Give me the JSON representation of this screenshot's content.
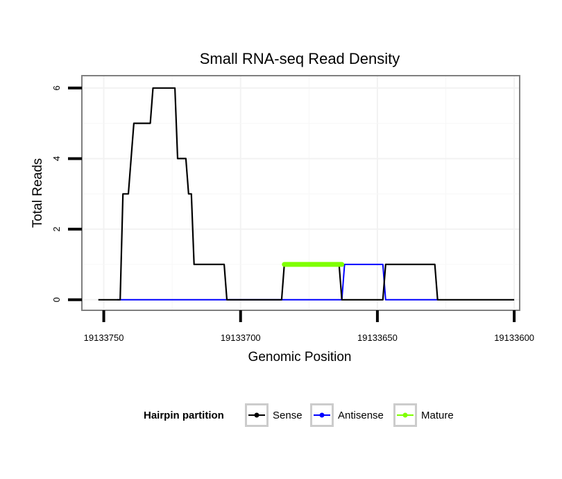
{
  "chart_data": {
    "type": "line",
    "title": "Small RNA-seq Read Density",
    "xlabel": "Genomic Position",
    "ylabel": "Total Reads",
    "xlim": [
      19133758,
      19133598
    ],
    "ylim": [
      -0.3,
      6.35
    ],
    "x_reversed": true,
    "x_ticks": [
      19133750,
      19133700,
      19133650,
      19133600
    ],
    "x_tick_labels": [
      "19133750",
      "19133700",
      "19133650",
      "19133600"
    ],
    "y_ticks": [
      0,
      2,
      4,
      6
    ],
    "y_tick_labels": [
      "0",
      "2",
      "4",
      "6"
    ],
    "grid": true,
    "legend": {
      "title": "Hairpin partition",
      "position": "bottom",
      "entries": [
        "Sense",
        "Antisense",
        "Mature"
      ]
    },
    "series": [
      {
        "name": "Sense",
        "color": "#000000",
        "points": [
          [
            19133752,
            0
          ],
          [
            19133744,
            0
          ],
          [
            19133743,
            3
          ],
          [
            19133741,
            3
          ],
          [
            19133739,
            5
          ],
          [
            19133733,
            5
          ],
          [
            19133732,
            6
          ],
          [
            19133724,
            6
          ],
          [
            19133723,
            4
          ],
          [
            19133720,
            4
          ],
          [
            19133719,
            3
          ],
          [
            19133718,
            3
          ],
          [
            19133717,
            1
          ],
          [
            19133706,
            1
          ],
          [
            19133705,
            0
          ],
          [
            19133685,
            0
          ],
          [
            19133684,
            1
          ],
          [
            19133664,
            1
          ],
          [
            19133663,
            0
          ],
          [
            19133648,
            0
          ],
          [
            19133647,
            1
          ],
          [
            19133629,
            1
          ],
          [
            19133628,
            0
          ],
          [
            19133600,
            0
          ]
        ]
      },
      {
        "name": "Antisense",
        "color": "#0000ff",
        "points": [
          [
            19133745,
            0
          ],
          [
            19133663,
            0
          ],
          [
            19133662,
            1
          ],
          [
            19133648,
            1
          ],
          [
            19133647,
            0
          ],
          [
            19133628,
            0
          ]
        ]
      },
      {
        "name": "Mature",
        "color": "#7fff00",
        "points": [
          [
            19133684,
            1
          ],
          [
            19133663,
            1
          ]
        ]
      }
    ]
  }
}
